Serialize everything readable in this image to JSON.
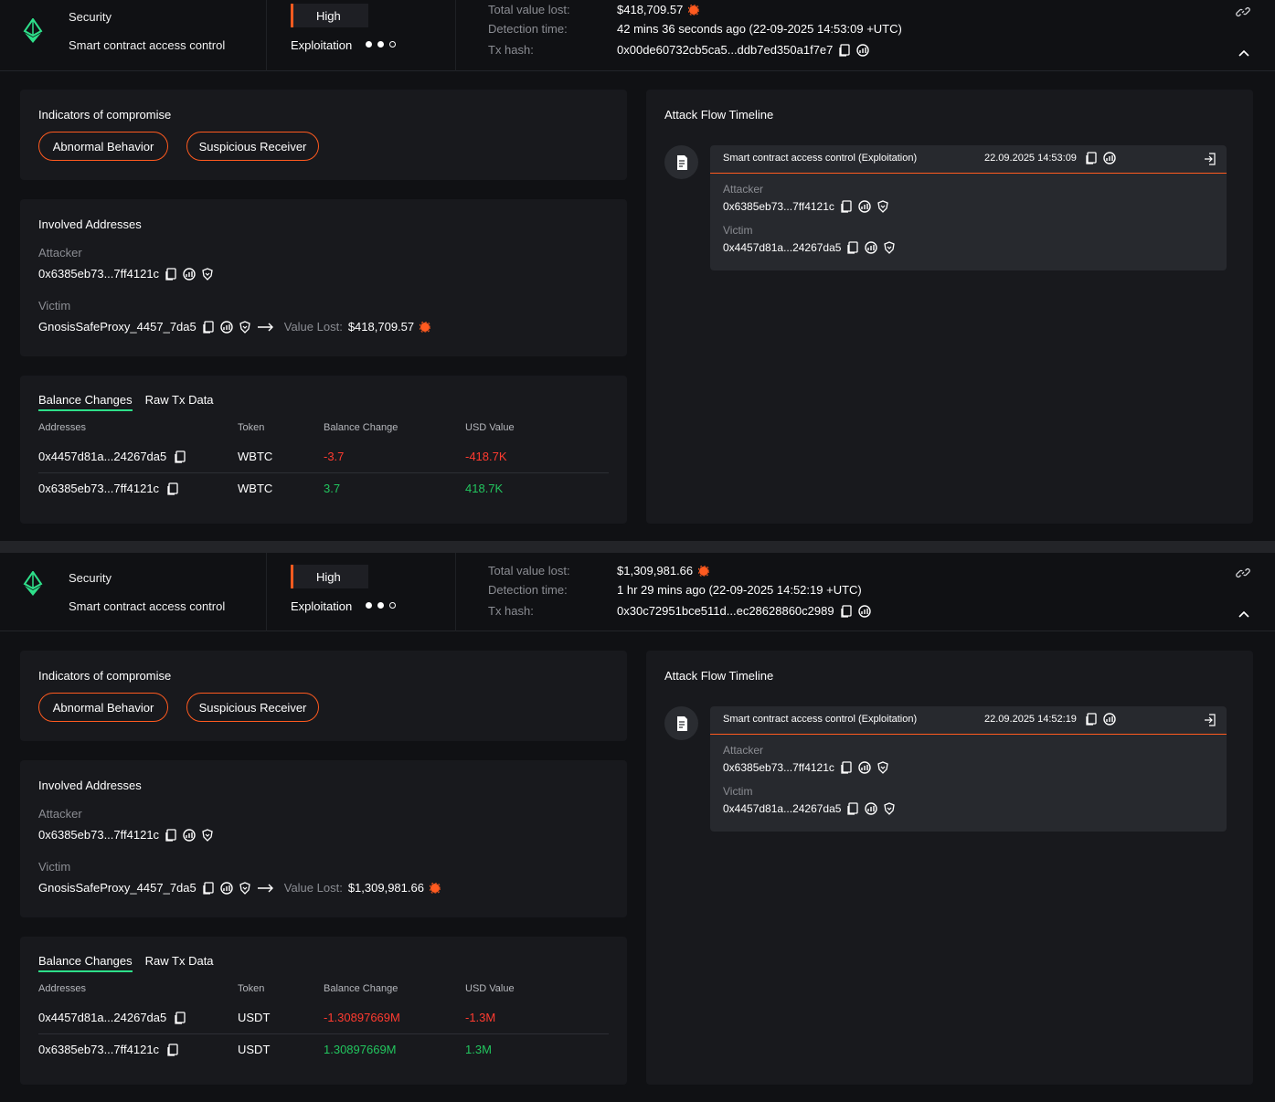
{
  "incidents": [
    {
      "category": "Security",
      "subcategory": "Smart contract access control",
      "severity": "High",
      "attack_type": "Exploitation",
      "total_value_lost_label": "Total value lost:",
      "total_value_lost": "$418,709.57",
      "detection_time_label": "Detection time:",
      "detection_time": "42 mins 36 seconds ago (22-09-2025 14:53:09 +UTC)",
      "tx_hash_label": "Tx hash:",
      "tx_hash": "0x00de60732cb5ca5...ddb7ed350a1f7e7",
      "ioc_title": "Indicators of compromise",
      "ioc_tags": [
        "Abnormal Behavior",
        "Suspicious Receiver"
      ],
      "involved_title": "Involved Addresses",
      "attacker_label": "Attacker",
      "attacker_address": "0x6385eb73...7ff4121c",
      "victim_label": "Victim",
      "victim_address": "GnosisSafeProxy_4457_7da5",
      "value_lost_label": "Value Lost:",
      "value_lost": "$418,709.57",
      "tabs": [
        "Balance Changes",
        "Raw Tx Data"
      ],
      "table_headers": [
        "Addresses",
        "Token",
        "Balance Change",
        "USD Value"
      ],
      "rows": [
        {
          "address": "0x4457d81a...24267da5",
          "token": "WBTC",
          "change": "-3.7",
          "usd": "-418.7K",
          "sign": "neg"
        },
        {
          "address": "0x6385eb73...7ff4121c",
          "token": "WBTC",
          "change": "3.7",
          "usd": "418.7K",
          "sign": "pos"
        }
      ],
      "timeline_title": "Attack Flow Timeline",
      "timeline_event": "Smart contract access control (Exploitation)",
      "timeline_date": "22.09.2025 14:53:09",
      "tl_attacker_label": "Attacker",
      "tl_attacker": "0x6385eb73...7ff4121c",
      "tl_victim_label": "Victim",
      "tl_victim": "0x4457d81a...24267da5"
    },
    {
      "category": "Security",
      "subcategory": "Smart contract access control",
      "severity": "High",
      "attack_type": "Exploitation",
      "total_value_lost_label": "Total value lost:",
      "total_value_lost": "$1,309,981.66",
      "detection_time_label": "Detection time:",
      "detection_time": "1 hr 29 mins ago (22-09-2025 14:52:19 +UTC)",
      "tx_hash_label": "Tx hash:",
      "tx_hash": "0x30c72951bce511d...ec28628860c2989",
      "ioc_title": "Indicators of compromise",
      "ioc_tags": [
        "Abnormal Behavior",
        "Suspicious Receiver"
      ],
      "involved_title": "Involved Addresses",
      "attacker_label": "Attacker",
      "attacker_address": "0x6385eb73...7ff4121c",
      "victim_label": "Victim",
      "victim_address": "GnosisSafeProxy_4457_7da5",
      "value_lost_label": "Value Lost:",
      "value_lost": "$1,309,981.66",
      "tabs": [
        "Balance Changes",
        "Raw Tx Data"
      ],
      "table_headers": [
        "Addresses",
        "Token",
        "Balance Change",
        "USD Value"
      ],
      "rows": [
        {
          "address": "0x4457d81a...24267da5",
          "token": "USDT",
          "change": "-1.30897669M",
          "usd": "-1.3M",
          "sign": "neg"
        },
        {
          "address": "0x6385eb73...7ff4121c",
          "token": "USDT",
          "change": "1.30897669M",
          "usd": "1.3M",
          "sign": "pos"
        }
      ],
      "timeline_title": "Attack Flow Timeline",
      "timeline_event": "Smart contract access control (Exploitation)",
      "timeline_date": "22.09.2025 14:52:19",
      "tl_attacker_label": "Attacker",
      "tl_attacker": "0x6385eb73...7ff4121c",
      "tl_victim_label": "Victim",
      "tl_victim": "0x4457d81a...24267da5"
    }
  ],
  "colors": {
    "accent": "#ff5a1f",
    "positive": "#22c55e",
    "negative": "#ff3b30",
    "tab_underline": "#2ee08a",
    "brand_logo": "#2ee08a"
  },
  "icons": [
    "ethereum-logo-icon",
    "link-icon",
    "chevron-up-icon",
    "copy-icon",
    "explorer-icon",
    "shield-icon",
    "arrow-right-icon",
    "alert-dot-icon",
    "document-icon",
    "exit-icon"
  ]
}
